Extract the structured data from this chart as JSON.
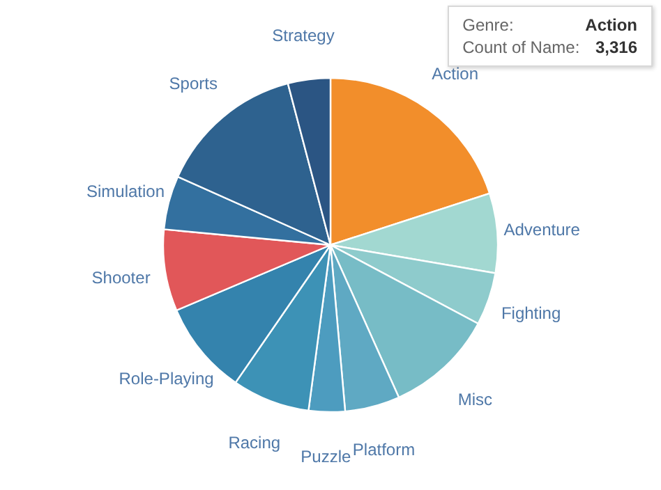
{
  "chart_data": {
    "type": "pie",
    "categories": [
      "Action",
      "Adventure",
      "Fighting",
      "Misc",
      "Platform",
      "Puzzle",
      "Racing",
      "Role-Playing",
      "Shooter",
      "Simulation",
      "Sports",
      "Strategy"
    ],
    "values": [
      20.0,
      7.7,
      5.1,
      10.5,
      5.3,
      3.5,
      7.5,
      9.0,
      7.9,
      5.2,
      14.2,
      4.1
    ],
    "colors": [
      "#f28e2b",
      "#a2d8d1",
      "#8ecbcc",
      "#77bcc6",
      "#5fa9c3",
      "#4d9cbf",
      "#3d92b6",
      "#3483ad",
      "#e15759",
      "#33709f",
      "#2e628f",
      "#2b5583"
    ],
    "annotations": [
      "Genre:",
      "Action",
      "Count of Name:",
      "3,316"
    ]
  }
}
